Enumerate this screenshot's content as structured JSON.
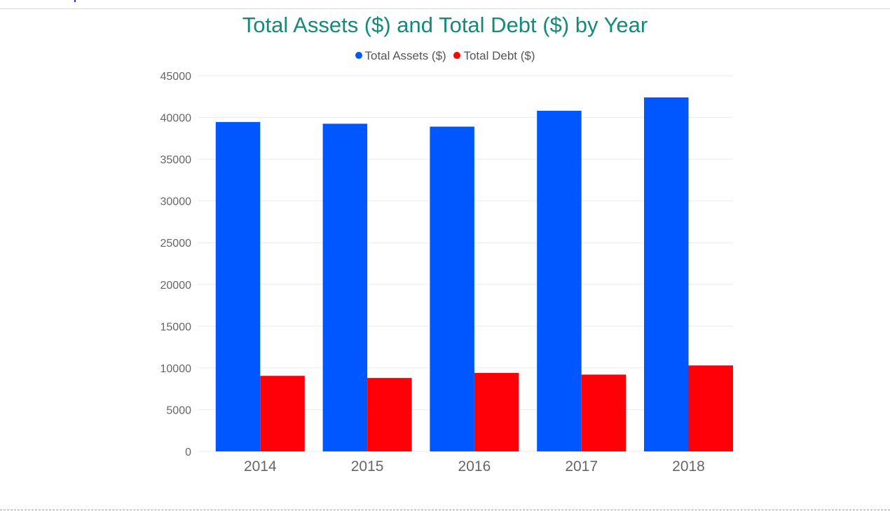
{
  "chart_data": {
    "type": "bar",
    "title": "Total Assets ($) and Total Debt ($) by Year",
    "categories": [
      "2014",
      "2015",
      "2016",
      "2017",
      "2018"
    ],
    "series": [
      {
        "name": "Total Assets ($)",
        "color": "#0057ff",
        "values": [
          39450,
          39250,
          38900,
          40800,
          42400
        ]
      },
      {
        "name": "Total Debt ($)",
        "color": "#ff0008",
        "values": [
          9050,
          8800,
          9400,
          9200,
          10300
        ]
      }
    ],
    "ylim": [
      0,
      45000
    ],
    "yticks": [
      "0",
      "5000",
      "10000",
      "15000",
      "20000",
      "25000",
      "30000",
      "35000",
      "40000",
      "45000"
    ],
    "grid": true,
    "legend": "top-center",
    "xlabel": "",
    "ylabel": ""
  }
}
